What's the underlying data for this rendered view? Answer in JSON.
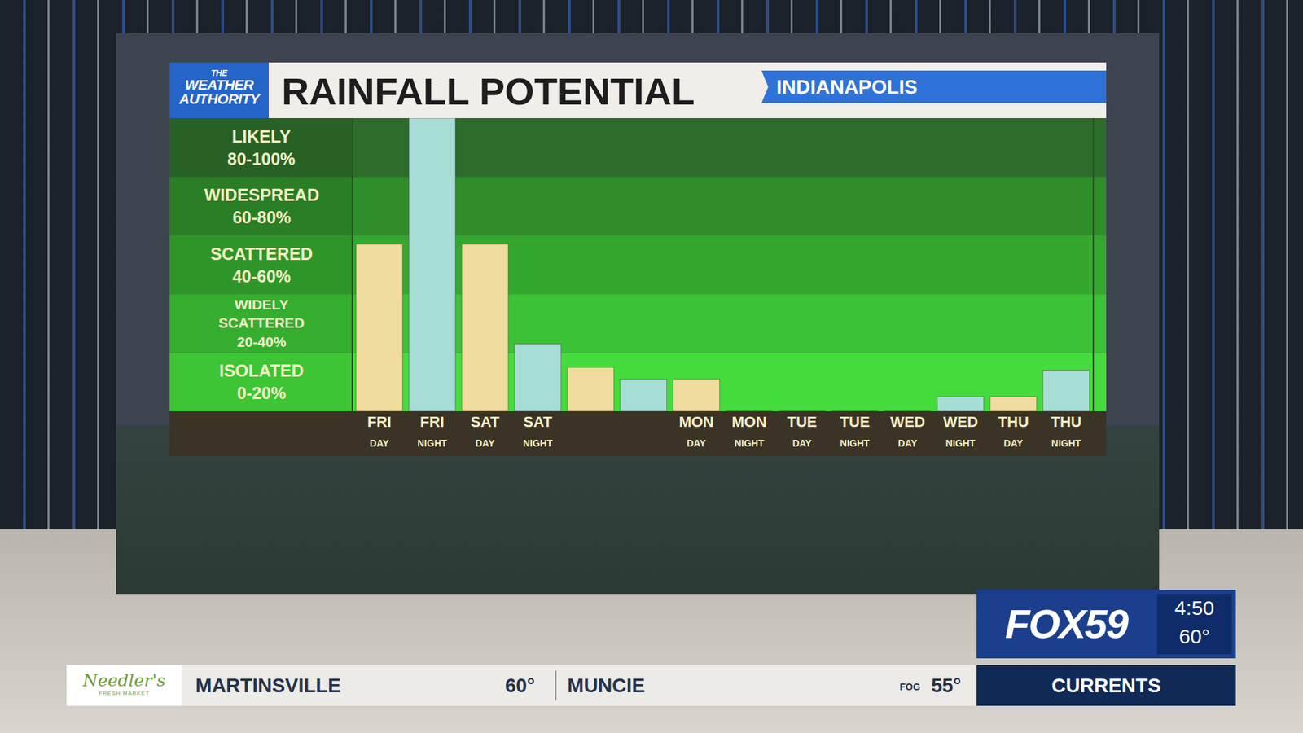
{
  "header": {
    "logo": "THE WEATHER AUTHORITY",
    "location": "INDIANAPOLIS"
  },
  "chart_data": {
    "type": "bar",
    "title": "RAINFALL POTENTIAL",
    "categories": [
      "FRI DAY",
      "FRI NIGHT",
      "SAT DAY",
      "SAT NIGHT",
      null,
      null,
      "MON DAY",
      "MON NIGHT",
      "TUE DAY",
      "TUE NIGHT",
      "WED DAY",
      "WED NIGHT",
      "THU DAY",
      "THU NIGHT"
    ],
    "values": [
      57,
      100,
      57,
      23,
      15,
      11,
      11,
      0,
      0,
      0,
      0,
      5,
      5,
      14
    ],
    "colors": [
      "#efdc9e",
      "#a6ded6",
      "#efdc9e",
      "#a6ded6",
      "#efdc9e",
      "#a6ded6",
      "#efdc9e",
      "#a6ded6",
      "#efdc9e",
      "#a6ded6",
      "#efdc9e",
      "#a6ded6",
      "#efdc9e",
      "#a6ded6"
    ],
    "ylim": [
      0,
      100
    ],
    "bands": [
      {
        "label": "LIKELY 80-100%",
        "from": 80,
        "to": 100,
        "color": "#2d6c2a"
      },
      {
        "label": "WIDESPREAD 60-80%",
        "from": 60,
        "to": 80,
        "color": "#2f8d2a"
      },
      {
        "label": "SCATTERED 40-60%",
        "from": 40,
        "to": 60,
        "color": "#34a82e"
      },
      {
        "label": "WIDELY SCATTERED 20-40%",
        "from": 20,
        "to": 40,
        "color": "#3bc236"
      },
      {
        "label": "ISOLATED 0-20%",
        "from": 0,
        "to": 20,
        "color": "#44dc3c"
      }
    ],
    "grid": false,
    "tick_labels": "x"
  },
  "broadcast": {
    "station": "FOX59",
    "time": "4:50",
    "temperature": "60°",
    "sponsor": "Needler's",
    "sponsor_tagline": "FRESH MARKET",
    "ticker": [
      {
        "city": "MARTINSVILLE",
        "temp": "60°"
      },
      {
        "city": "MUNCIE",
        "condition": "FOG",
        "temp": "55°"
      }
    ],
    "ticker_label": "CURRENTS"
  }
}
